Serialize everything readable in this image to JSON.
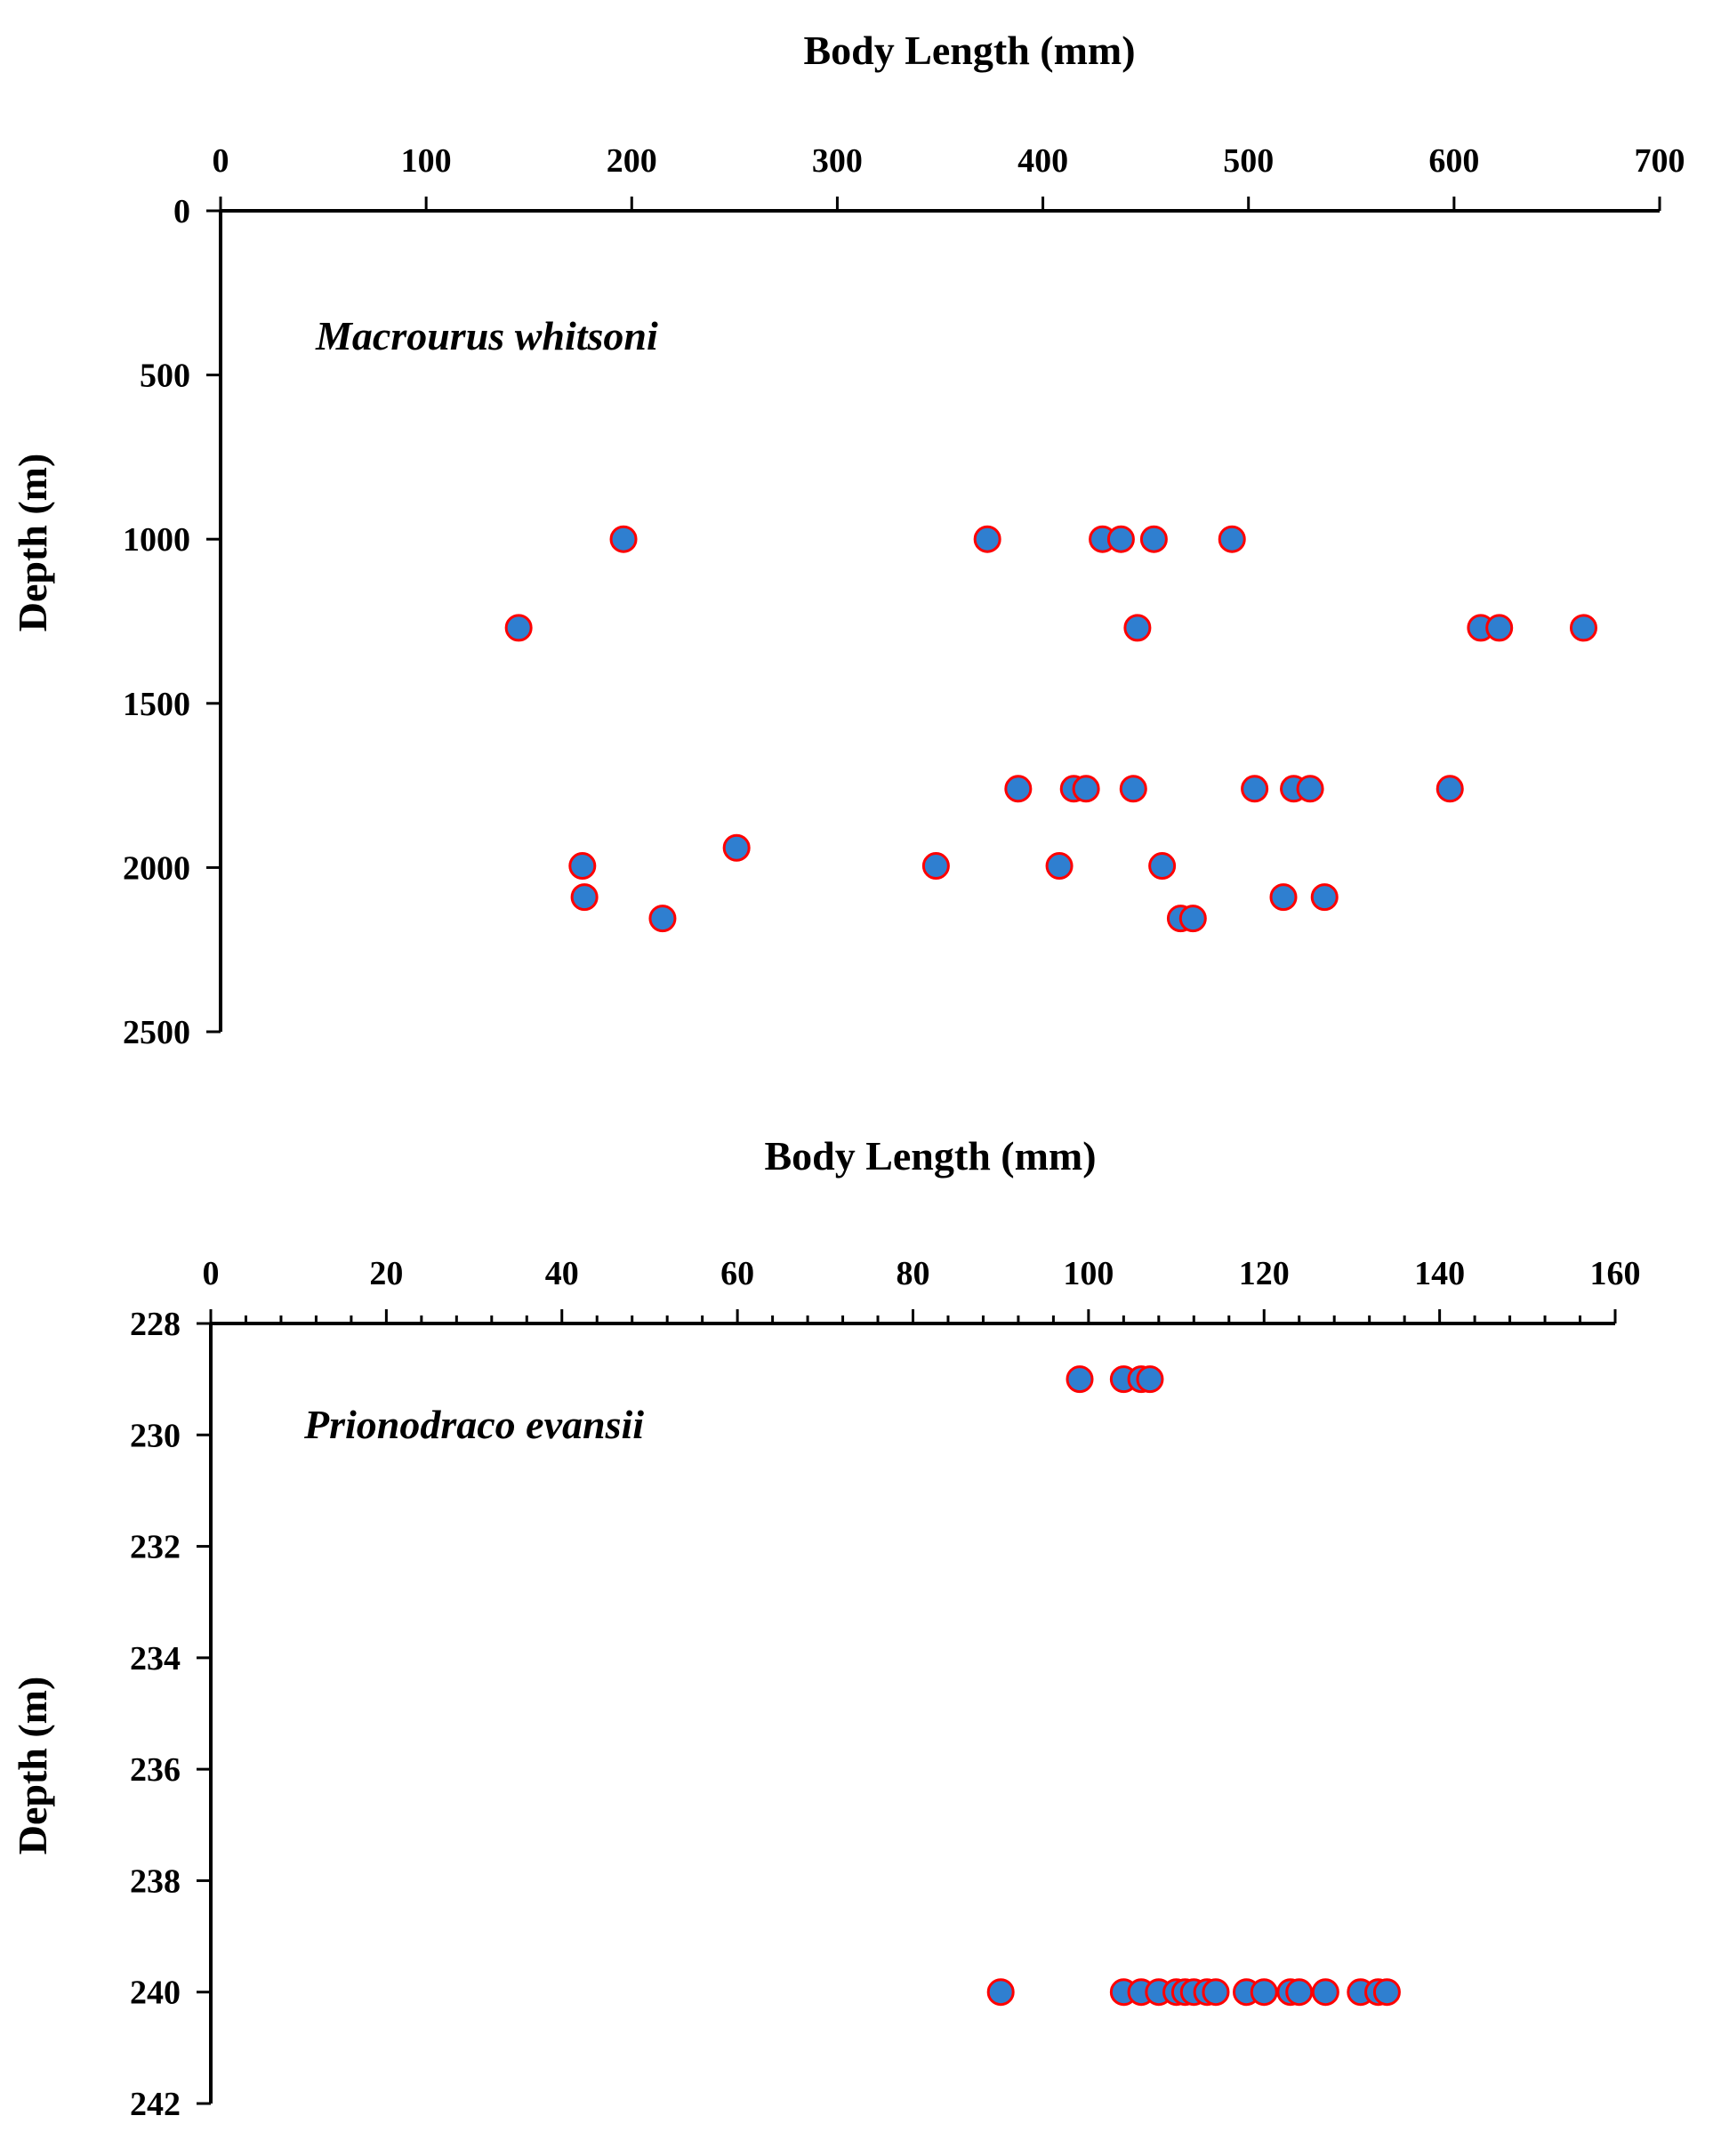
{
  "colors": {
    "marker_fill": "#2F7FD0",
    "marker_stroke": "#FF0000",
    "axis": "#000000",
    "text": "#000000"
  },
  "chart_data": [
    {
      "type": "scatter",
      "species": "Macrourus whitsoni",
      "xlabel": "Body Length (mm)",
      "ylabel": "Depth (m)",
      "xlim": [
        0,
        700
      ],
      "ylim": [
        0,
        2500
      ],
      "y_inverted": true,
      "x_axis_position": "top",
      "xticks": [
        "0",
        "100",
        "200",
        "300",
        "400",
        "500",
        "600",
        "700"
      ],
      "yticks": [
        "0",
        "500",
        "1000",
        "1500",
        "2000",
        "2500"
      ],
      "grid": false,
      "points": [
        {
          "x": 196,
          "y": 1000
        },
        {
          "x": 373,
          "y": 1000
        },
        {
          "x": 429,
          "y": 1000
        },
        {
          "x": 438,
          "y": 1000
        },
        {
          "x": 454,
          "y": 1000
        },
        {
          "x": 492,
          "y": 1000
        },
        {
          "x": 145,
          "y": 1270
        },
        {
          "x": 446,
          "y": 1270
        },
        {
          "x": 613,
          "y": 1270
        },
        {
          "x": 622,
          "y": 1270
        },
        {
          "x": 663,
          "y": 1270
        },
        {
          "x": 388,
          "y": 1760
        },
        {
          "x": 415,
          "y": 1760
        },
        {
          "x": 421,
          "y": 1760
        },
        {
          "x": 444,
          "y": 1760
        },
        {
          "x": 503,
          "y": 1760
        },
        {
          "x": 522,
          "y": 1760
        },
        {
          "x": 530,
          "y": 1760
        },
        {
          "x": 598,
          "y": 1760
        },
        {
          "x": 251,
          "y": 1940
        },
        {
          "x": 176,
          "y": 1995
        },
        {
          "x": 348,
          "y": 1995
        },
        {
          "x": 408,
          "y": 1995
        },
        {
          "x": 458,
          "y": 1995
        },
        {
          "x": 177,
          "y": 2090
        },
        {
          "x": 517,
          "y": 2090
        },
        {
          "x": 537,
          "y": 2090
        },
        {
          "x": 215,
          "y": 2155
        },
        {
          "x": 467,
          "y": 2155
        },
        {
          "x": 473,
          "y": 2155
        }
      ]
    },
    {
      "type": "scatter",
      "species": "Prionodraco evansii",
      "xlabel": "Body Length (mm)",
      "ylabel": "Depth (m)",
      "xlim": [
        0,
        160
      ],
      "ylim": [
        228,
        242
      ],
      "y_inverted": true,
      "x_axis_position": "top",
      "xticks": [
        "0",
        "20",
        "40",
        "60",
        "80",
        "100",
        "120",
        "140",
        "160"
      ],
      "yticks": [
        "228",
        "230",
        "232",
        "234",
        "236",
        "238",
        "240",
        "242"
      ],
      "grid": false,
      "points": [
        {
          "x": 99,
          "y": 229
        },
        {
          "x": 104,
          "y": 229
        },
        {
          "x": 106,
          "y": 229
        },
        {
          "x": 107,
          "y": 229
        },
        {
          "x": 90,
          "y": 240
        },
        {
          "x": 104,
          "y": 240
        },
        {
          "x": 106,
          "y": 240
        },
        {
          "x": 108,
          "y": 240
        },
        {
          "x": 110,
          "y": 240
        },
        {
          "x": 111,
          "y": 240
        },
        {
          "x": 112,
          "y": 240
        },
        {
          "x": 113.5,
          "y": 240
        },
        {
          "x": 114.5,
          "y": 240
        },
        {
          "x": 118,
          "y": 240
        },
        {
          "x": 120,
          "y": 240
        },
        {
          "x": 123,
          "y": 240
        },
        {
          "x": 124,
          "y": 240
        },
        {
          "x": 127,
          "y": 240
        },
        {
          "x": 131,
          "y": 240
        },
        {
          "x": 133,
          "y": 240
        },
        {
          "x": 134,
          "y": 240
        }
      ]
    }
  ]
}
